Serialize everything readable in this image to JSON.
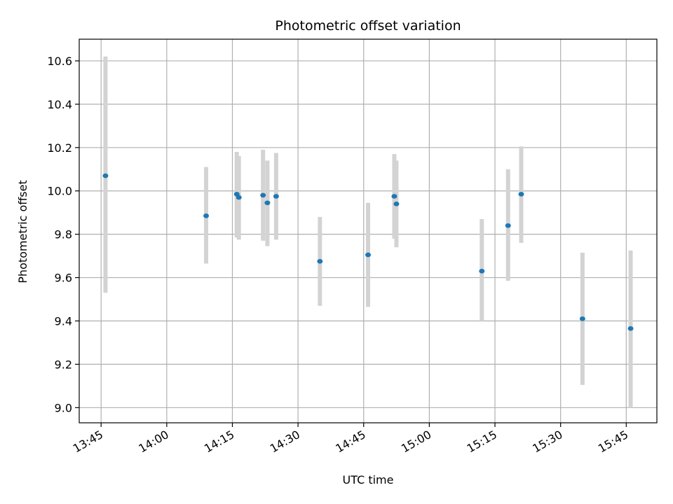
{
  "chart_data": {
    "type": "scatter",
    "title": "Photometric offset variation",
    "xlabel": "UTC time",
    "ylabel": "Photometric offset",
    "x_ticks": [
      "13:45",
      "14:00",
      "14:15",
      "14:30",
      "14:45",
      "15:00",
      "15:15",
      "15:30",
      "15:45"
    ],
    "xlim": [
      "13:40",
      "15:52"
    ],
    "y_ticks": [
      "9.0",
      "9.2",
      "9.4",
      "9.6",
      "9.8",
      "10.0",
      "10.2",
      "10.4",
      "10.6"
    ],
    "ylim": [
      8.93,
      10.7
    ],
    "grid": true,
    "point_color": "#1f77b4",
    "errorbar_color": "#d3d3d3",
    "series": [
      {
        "points": [
          {
            "x": "13:46",
            "y": 10.07,
            "low": 9.53,
            "high": 10.62
          },
          {
            "x": "14:09",
            "y": 9.885,
            "low": 9.665,
            "high": 10.11
          },
          {
            "x": "14:16",
            "y": 9.985,
            "low": 9.785,
            "high": 10.18
          },
          {
            "x": "14:16",
            "y": 9.97,
            "low": 9.775,
            "high": 10.16
          },
          {
            "x": "14:22",
            "y": 9.98,
            "low": 9.77,
            "high": 10.19
          },
          {
            "x": "14:23",
            "y": 9.945,
            "low": 9.745,
            "high": 10.14
          },
          {
            "x": "14:25",
            "y": 9.975,
            "low": 9.775,
            "high": 10.175
          },
          {
            "x": "14:35",
            "y": 9.675,
            "low": 9.47,
            "high": 9.88
          },
          {
            "x": "14:46",
            "y": 9.705,
            "low": 9.465,
            "high": 9.945
          },
          {
            "x": "14:52",
            "y": 9.975,
            "low": 9.78,
            "high": 10.17
          },
          {
            "x": "14:52",
            "y": 9.94,
            "low": 9.74,
            "high": 10.14
          },
          {
            "x": "15:12",
            "y": 9.63,
            "low": 9.4,
            "high": 9.87
          },
          {
            "x": "15:18",
            "y": 9.84,
            "low": 9.585,
            "high": 10.1
          },
          {
            "x": "15:21",
            "y": 9.985,
            "low": 9.76,
            "high": 10.205
          },
          {
            "x": "15:35",
            "y": 9.41,
            "low": 9.105,
            "high": 9.715
          },
          {
            "x": "15:46",
            "y": 9.365,
            "low": 9.0,
            "high": 9.725
          }
        ]
      }
    ]
  }
}
